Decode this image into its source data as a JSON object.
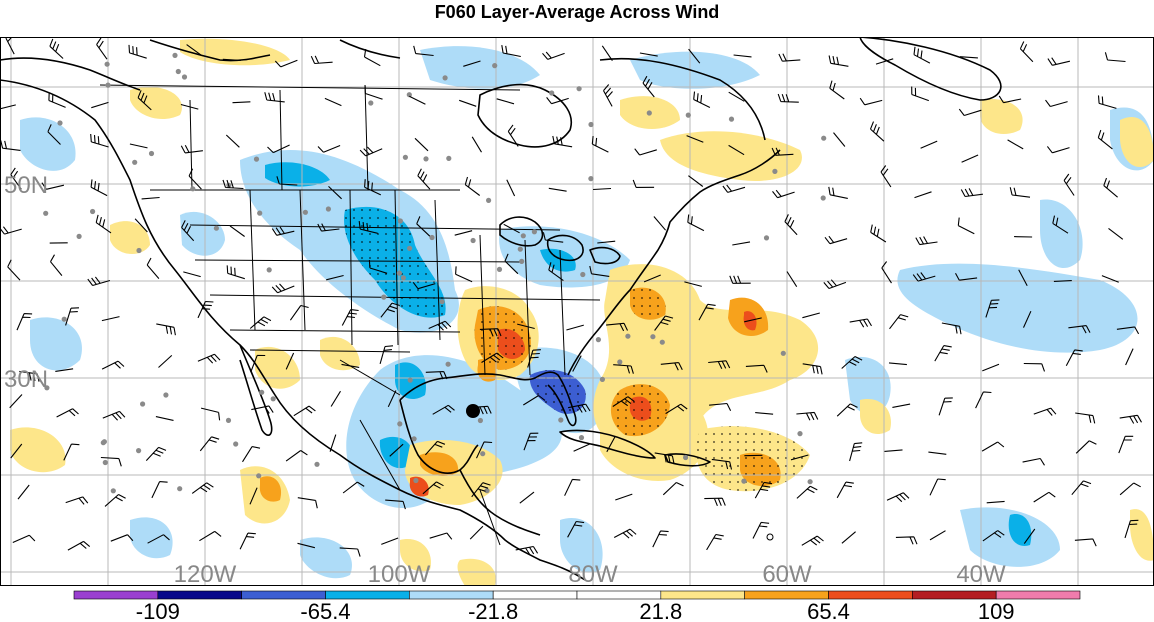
{
  "title": "F060 Layer-Average Across Wind",
  "latitude_labels": [
    {
      "text": "50N",
      "lat": 50
    },
    {
      "text": "30N",
      "lat": 30
    }
  ],
  "longitude_labels": [
    {
      "text": "120W",
      "lon": -120
    },
    {
      "text": "100W",
      "lon": -100
    },
    {
      "text": "80W",
      "lon": -80
    },
    {
      "text": "60W",
      "lon": -60
    },
    {
      "text": "40W",
      "lon": -40
    }
  ],
  "colorbar": {
    "colors": [
      "#9a3fd0",
      "#0a0a8a",
      "#3c5ed2",
      "#0ab0e8",
      "#aedcf8",
      "#ffffff",
      "#ffffff",
      "#fde68a",
      "#f7a21c",
      "#ec4e1c",
      "#b41e22",
      "#f07cac"
    ],
    "labels": [
      "-109",
      "-65.4",
      "-21.8",
      "21.8",
      "65.4",
      "109"
    ]
  },
  "colors": {
    "grid": "#b8b8b8",
    "coast": "#000000",
    "station": "#8a8a8a",
    "barb": "#000000"
  }
}
